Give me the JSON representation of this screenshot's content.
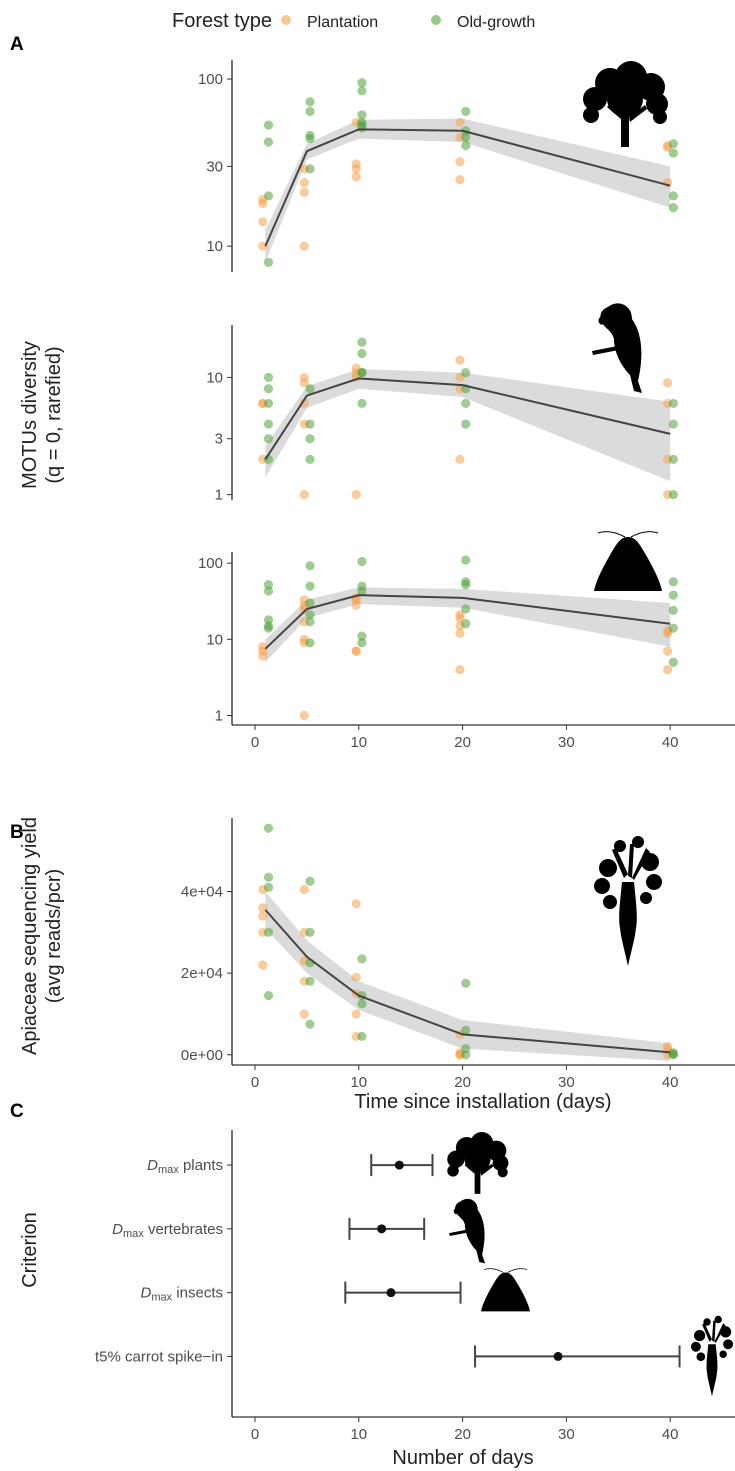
{
  "legend": {
    "title": "Forest type",
    "entries": [
      {
        "name": "Plantation",
        "color": "#F5A04A"
      },
      {
        "name": "Old-growth",
        "color": "#4EA33A"
      }
    ]
  },
  "panels": {
    "a_letter": "A",
    "b_letter": "B",
    "c_letter": "C",
    "a_ylabel_main": "MOTUs diversity",
    "a_ylabel_sub": "(q = 0, rarefied)",
    "b_ylabel_main": "Apiaceae sequencing yield",
    "b_ylabel_sub": "(avg reads/pcr)",
    "b_xlabel": "Time since installation (days)",
    "c_ylabel": "Criterion",
    "c_xlabel": "Number of days"
  },
  "icons": [
    "tree-icon",
    "parrot-icon",
    "moth-icon",
    "carrot-icon"
  ],
  "chart_data": [
    {
      "type": "scatter",
      "panel": "A1 plants",
      "y_scale": "log",
      "ylim": [
        7,
        130
      ],
      "xlim": [
        -1,
        46
      ],
      "x_ticks": [
        0,
        10,
        20,
        30,
        40
      ],
      "y_ticks": [
        10,
        30,
        100
      ],
      "fit_line": {
        "x": [
          1,
          5,
          10,
          20,
          40
        ],
        "y": [
          10,
          37,
          50,
          49,
          23
        ]
      },
      "ribbon_lower": [
        8,
        33,
        44,
        42,
        17
      ],
      "ribbon_upper": [
        12.5,
        41,
        57,
        58,
        30
      ],
      "series": [
        {
          "name": "Plantation",
          "points": [
            [
              1,
              10
            ],
            [
              1,
              14
            ],
            [
              1,
              18
            ],
            [
              1,
              19
            ],
            [
              5,
              10
            ],
            [
              5,
              21
            ],
            [
              5,
              24
            ],
            [
              5,
              29
            ],
            [
              10,
              26
            ],
            [
              10,
              29
            ],
            [
              10,
              31
            ],
            [
              10,
              55
            ],
            [
              20,
              25
            ],
            [
              20,
              32
            ],
            [
              20,
              45
            ],
            [
              20,
              55
            ],
            [
              40,
              24
            ],
            [
              40,
              39
            ],
            [
              40,
              40
            ]
          ]
        },
        {
          "name": "Old-growth",
          "points": [
            [
              1,
              8
            ],
            [
              1,
              20
            ],
            [
              1,
              42
            ],
            [
              1,
              53
            ],
            [
              5,
              29
            ],
            [
              5,
              44
            ],
            [
              5,
              46
            ],
            [
              5,
              64
            ],
            [
              5,
              73
            ],
            [
              10,
              51
            ],
            [
              10,
              53
            ],
            [
              10,
              55
            ],
            [
              10,
              61
            ],
            [
              10,
              85
            ],
            [
              10,
              95
            ],
            [
              20,
              40
            ],
            [
              20,
              45
            ],
            [
              20,
              49
            ],
            [
              20,
              64
            ],
            [
              40,
              17
            ],
            [
              40,
              20
            ],
            [
              40,
              36
            ],
            [
              40,
              41
            ]
          ]
        }
      ]
    },
    {
      "type": "scatter",
      "panel": "A2 vertebrates",
      "y_scale": "log",
      "ylim": [
        0.9,
        28
      ],
      "xlim": [
        -1,
        46
      ],
      "x_ticks": [
        0,
        10,
        20,
        30,
        40
      ],
      "y_ticks": [
        1,
        3,
        10
      ],
      "fit_line": {
        "x": [
          1,
          5,
          10,
          20,
          40
        ],
        "y": [
          2,
          7,
          9.8,
          8.6,
          3.3
        ]
      },
      "ribbon_lower": [
        1.4,
        5.5,
        8,
        6.8,
        1.3
      ],
      "ribbon_upper": [
        2.6,
        8.4,
        11.8,
        11,
        6.2
      ],
      "series": [
        {
          "name": "Plantation",
          "points": [
            [
              1,
              2
            ],
            [
              1,
              6
            ],
            [
              1,
              6
            ],
            [
              5,
              1
            ],
            [
              5,
              4
            ],
            [
              5,
              6
            ],
            [
              5,
              9
            ],
            [
              5,
              10
            ],
            [
              10,
              1
            ],
            [
              10,
              10
            ],
            [
              10,
              11
            ],
            [
              10,
              12
            ],
            [
              20,
              2
            ],
            [
              20,
              8
            ],
            [
              20,
              10
            ],
            [
              20,
              14
            ],
            [
              40,
              1
            ],
            [
              40,
              2
            ],
            [
              40,
              6
            ],
            [
              40,
              9
            ]
          ]
        },
        {
          "name": "Old-growth",
          "points": [
            [
              1,
              2
            ],
            [
              1,
              3
            ],
            [
              1,
              4
            ],
            [
              1,
              6
            ],
            [
              1,
              8
            ],
            [
              1,
              10
            ],
            [
              5,
              2
            ],
            [
              5,
              3
            ],
            [
              5,
              4
            ],
            [
              5,
              8
            ],
            [
              10,
              6
            ],
            [
              10,
              11
            ],
            [
              10,
              11
            ],
            [
              10,
              16
            ],
            [
              10,
              20
            ],
            [
              20,
              4
            ],
            [
              20,
              6
            ],
            [
              20,
              8
            ],
            [
              20,
              11
            ],
            [
              40,
              1
            ],
            [
              40,
              2
            ],
            [
              40,
              4
            ],
            [
              40,
              6
            ]
          ]
        }
      ]
    },
    {
      "type": "scatter",
      "panel": "A3 insects",
      "y_scale": "log",
      "ylim": [
        0.75,
        140
      ],
      "xlim": [
        -1,
        46
      ],
      "x_ticks": [
        0,
        10,
        20,
        30,
        40
      ],
      "y_ticks": [
        1,
        10,
        100
      ],
      "fit_line": {
        "x": [
          1,
          5,
          10,
          20,
          40
        ],
        "y": [
          7.5,
          25,
          38,
          35,
          16
        ]
      },
      "ribbon_lower": [
        5,
        19,
        29,
        26,
        8
      ],
      "ribbon_upper": [
        10,
        33,
        48,
        46,
        30
      ],
      "series": [
        {
          "name": "Plantation",
          "points": [
            [
              1,
              6
            ],
            [
              1,
              7
            ],
            [
              1,
              8
            ],
            [
              5,
              1
            ],
            [
              5,
              9
            ],
            [
              5,
              10
            ],
            [
              5,
              17
            ],
            [
              5,
              25
            ],
            [
              5,
              28
            ],
            [
              5,
              33
            ],
            [
              10,
              7
            ],
            [
              10,
              7
            ],
            [
              10,
              28
            ],
            [
              10,
              33
            ],
            [
              10,
              35
            ],
            [
              20,
              4
            ],
            [
              20,
              12
            ],
            [
              20,
              15
            ],
            [
              20,
              19
            ],
            [
              20,
              21
            ],
            [
              40,
              4
            ],
            [
              40,
              7
            ],
            [
              40,
              12
            ],
            [
              40,
              13
            ]
          ]
        },
        {
          "name": "Old-growth",
          "points": [
            [
              1,
              14
            ],
            [
              1,
              15
            ],
            [
              1,
              18
            ],
            [
              1,
              43
            ],
            [
              1,
              52
            ],
            [
              5,
              9
            ],
            [
              5,
              17
            ],
            [
              5,
              21
            ],
            [
              5,
              30
            ],
            [
              5,
              50
            ],
            [
              5,
              92
            ],
            [
              10,
              9
            ],
            [
              10,
              11
            ],
            [
              10,
              43
            ],
            [
              10,
              50
            ],
            [
              10,
              105
            ],
            [
              20,
              16
            ],
            [
              20,
              25
            ],
            [
              20,
              52
            ],
            [
              20,
              57
            ],
            [
              20,
              110
            ],
            [
              40,
              5
            ],
            [
              40,
              14
            ],
            [
              40,
              24
            ],
            [
              40,
              38
            ],
            [
              40,
              57
            ]
          ]
        }
      ]
    },
    {
      "type": "scatter",
      "panel": "B carrot",
      "y_scale": "linear",
      "ylim": [
        -2500,
        58000
      ],
      "xlim": [
        -1,
        46
      ],
      "x_ticks": [
        0,
        10,
        20,
        30,
        40
      ],
      "y_ticks": [
        0,
        20000,
        40000
      ],
      "y_tick_labels": [
        "0e+00",
        "2e+04",
        "4e+04"
      ],
      "xlabel": "Time since installation (days)",
      "fit_line": {
        "x": [
          1,
          5,
          10,
          20,
          40
        ],
        "y": [
          35500,
          24000,
          14500,
          5000,
          600
        ]
      },
      "ribbon_lower": [
        31000,
        20000,
        11000,
        1500,
        -1500
      ],
      "ribbon_upper": [
        40000,
        28000,
        18000,
        8500,
        2800
      ],
      "series": [
        {
          "name": "Plantation",
          "points": [
            [
              1,
              22000
            ],
            [
              1,
              30000
            ],
            [
              1,
              34000
            ],
            [
              1,
              36000
            ],
            [
              1,
              40500
            ],
            [
              5,
              10000
            ],
            [
              5,
              18000
            ],
            [
              5,
              23000
            ],
            [
              5,
              30000
            ],
            [
              5,
              40500
            ],
            [
              10,
              4500
            ],
            [
              10,
              10000
            ],
            [
              10,
              15000
            ],
            [
              10,
              19000
            ],
            [
              10,
              37000
            ],
            [
              20,
              0
            ],
            [
              20,
              0
            ],
            [
              20,
              500
            ],
            [
              20,
              5000
            ],
            [
              40,
              0
            ],
            [
              40,
              1200
            ],
            [
              40,
              2000
            ]
          ]
        },
        {
          "name": "Old-growth",
          "points": [
            [
              1,
              14500
            ],
            [
              1,
              30000
            ],
            [
              1,
              41000
            ],
            [
              1,
              43500
            ],
            [
              1,
              55500
            ],
            [
              5,
              7500
            ],
            [
              5,
              18000
            ],
            [
              5,
              22500
            ],
            [
              5,
              30000
            ],
            [
              5,
              42500
            ],
            [
              10,
              4500
            ],
            [
              10,
              12500
            ],
            [
              10,
              14500
            ],
            [
              10,
              23500
            ],
            [
              20,
              0
            ],
            [
              20,
              1500
            ],
            [
              20,
              6000
            ],
            [
              20,
              17500
            ],
            [
              40,
              0
            ],
            [
              40,
              200
            ],
            [
              40,
              500
            ]
          ]
        }
      ]
    },
    {
      "type": "errorbar",
      "panel": "C",
      "xlim": [
        -1,
        46
      ],
      "x_ticks": [
        0,
        10,
        20,
        30,
        40
      ],
      "xlabel": "Number of days",
      "ylabel": "Criterion",
      "rows": [
        {
          "label_main": "D",
          "label_sub": "max",
          "label_rest": " plants",
          "estimate": 13.9,
          "lower": 11.2,
          "upper": 17.1,
          "icon": "tree-icon"
        },
        {
          "label_main": "D",
          "label_sub": "max",
          "label_rest": " vertebrates",
          "estimate": 12.2,
          "lower": 9.1,
          "upper": 16.3,
          "icon": "parrot-icon"
        },
        {
          "label_main": "D",
          "label_sub": "max",
          "label_rest": " insects",
          "estimate": 13.1,
          "lower": 8.7,
          "upper": 19.8,
          "icon": "moth-icon"
        },
        {
          "label_main": "t5% carrot spike−in",
          "label_sub": "",
          "label_rest": "",
          "estimate": 29.2,
          "lower": 21.2,
          "upper": 40.9,
          "icon": "carrot-icon"
        }
      ]
    }
  ]
}
